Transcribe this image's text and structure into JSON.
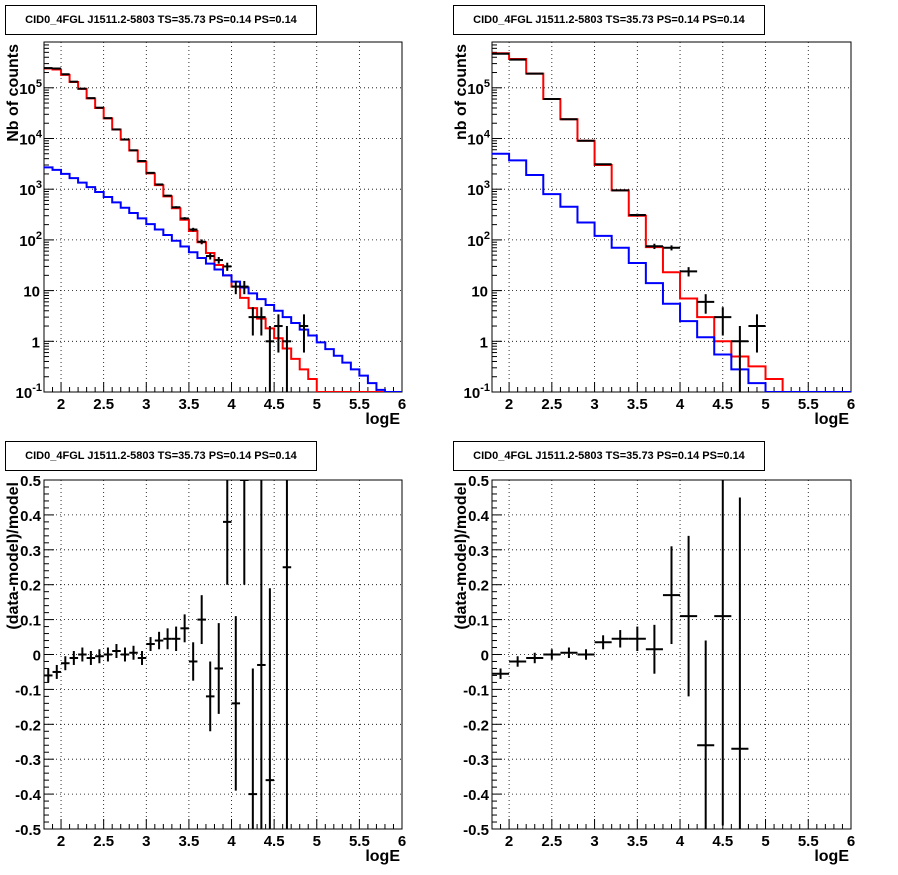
{
  "chart_data": [
    {
      "type": "line",
      "title": "CID0_4FGL J1511.2-5803 TS=35.73 PS=0.14 PS=0.14",
      "xlabel": "logE",
      "ylabel": "Nb of counts",
      "xlim": [
        1.8,
        6.0
      ],
      "ylim": [
        0.1,
        800000
      ],
      "yscale": "log",
      "grid": true,
      "x_ticks": [
        "2",
        "2.5",
        "3",
        "3.5",
        "4",
        "4.5",
        "5",
        "5.5",
        "6"
      ],
      "y_ticks": [
        "10^-1",
        "1",
        "10",
        "10^2",
        "10^3",
        "10^4",
        "10^5"
      ],
      "bin_edges": [
        1.8,
        1.9,
        2.0,
        2.1,
        2.2,
        2.3,
        2.4,
        2.5,
        2.6,
        2.7,
        2.8,
        2.9,
        3.0,
        3.1,
        3.2,
        3.3,
        3.4,
        3.5,
        3.6,
        3.7,
        3.8,
        3.9,
        4.0,
        4.1,
        4.2,
        4.3,
        4.4,
        4.5,
        4.6,
        4.7,
        4.8,
        4.9,
        5.0,
        5.1,
        5.2,
        5.3,
        5.4,
        5.5,
        5.6,
        5.7,
        5.8,
        5.9,
        6.0
      ],
      "series": [
        {
          "color": "#ff0000",
          "values": [
            240000,
            230000,
            180000,
            130000,
            95000,
            62000,
            40000,
            25000,
            15000,
            9500,
            5800,
            3500,
            2050,
            1200,
            720,
            420,
            250,
            150,
            90,
            55,
            32,
            20,
            12,
            7.2,
            4.5,
            2.8,
            1.8,
            1.15,
            0.72,
            0.45,
            0.28,
            0.18,
            0.1,
            0.1,
            0.1,
            0.1,
            0.1,
            0.1,
            0.1,
            0.1,
            0.1,
            0.1
          ]
        },
        {
          "color": "#0000ff",
          "values": [
            2700,
            2400,
            2000,
            1650,
            1350,
            1100,
            880,
            700,
            550,
            430,
            340,
            265,
            205,
            160,
            125,
            96,
            74,
            57,
            44,
            34,
            26,
            20,
            15,
            11.5,
            8.8,
            6.8,
            5.2,
            4,
            3,
            2.3,
            1.7,
            1.3,
            0.95,
            0.7,
            0.52,
            0.38,
            0.28,
            0.21,
            0.15,
            0.11,
            0.1,
            0.1
          ]
        }
      ],
      "data_points": [
        {
          "x": 1.85,
          "y": 245000,
          "ey": 500
        },
        {
          "x": 1.95,
          "y": 240000,
          "ey": 490
        },
        {
          "x": 2.05,
          "y": 185000,
          "ey": 430
        },
        {
          "x": 2.15,
          "y": 132000,
          "ey": 360
        },
        {
          "x": 2.25,
          "y": 96000,
          "ey": 310
        },
        {
          "x": 2.35,
          "y": 62500,
          "ey": 250
        },
        {
          "x": 2.45,
          "y": 40500,
          "ey": 200
        },
        {
          "x": 2.55,
          "y": 25200,
          "ey": 160
        },
        {
          "x": 2.65,
          "y": 15100,
          "ey": 120
        },
        {
          "x": 2.75,
          "y": 9550,
          "ey": 98
        },
        {
          "x": 2.85,
          "y": 5850,
          "ey": 76
        },
        {
          "x": 2.95,
          "y": 3600,
          "ey": 60
        },
        {
          "x": 3.05,
          "y": 2100,
          "ey": 46
        },
        {
          "x": 3.15,
          "y": 1240,
          "ey": 35
        },
        {
          "x": 3.25,
          "y": 745,
          "ey": 27
        },
        {
          "x": 3.35,
          "y": 440,
          "ey": 21
        },
        {
          "x": 3.45,
          "y": 265,
          "ey": 16
        },
        {
          "x": 3.55,
          "y": 160,
          "ey": 13
        },
        {
          "x": 3.65,
          "y": 92,
          "ey": 10
        },
        {
          "x": 3.75,
          "y": 48,
          "ey": 7
        },
        {
          "x": 3.85,
          "y": 40,
          "ey": 6
        },
        {
          "x": 3.95,
          "y": 30,
          "ey": 5.5
        },
        {
          "x": 4.05,
          "y": 12,
          "ey": 3.5
        },
        {
          "x": 4.15,
          "y": 12,
          "ey": 3.5
        },
        {
          "x": 4.25,
          "y": 3,
          "ey": 1.7
        },
        {
          "x": 4.35,
          "y": 3,
          "ey": 1.7
        },
        {
          "x": 4.45,
          "y": 1,
          "ey": 1
        },
        {
          "x": 4.55,
          "y": 2,
          "ey": 1.4
        },
        {
          "x": 4.65,
          "y": 1,
          "ey": 1
        },
        {
          "x": 4.85,
          "y": 2,
          "ey": 1.4
        }
      ]
    },
    {
      "type": "line",
      "title": "CID0_4FGL J1511.2-5803 TS=35.73 PS=0.14 PS=0.14",
      "xlabel": "logE",
      "ylabel": "nb of counts",
      "xlim": [
        1.8,
        6.0
      ],
      "ylim": [
        0.1,
        800000
      ],
      "yscale": "log",
      "grid": true,
      "x_ticks": [
        "2",
        "2.5",
        "3",
        "3.5",
        "4",
        "4.5",
        "5",
        "5.5",
        "6"
      ],
      "y_ticks": [
        "10^-1",
        "1",
        "10",
        "10^2",
        "10^3",
        "10^4",
        "10^5"
      ],
      "bin_edges": [
        1.8,
        2.0,
        2.2,
        2.4,
        2.6,
        2.8,
        3.0,
        3.2,
        3.4,
        3.6,
        3.8,
        4.0,
        4.2,
        4.4,
        4.6,
        4.8,
        5.0,
        5.2,
        5.4,
        5.6,
        5.8,
        6.0
      ],
      "series": [
        {
          "color": "#ff0000",
          "values": [
            480000,
            370000,
            190000,
            60000,
            24000,
            9000,
            3000,
            950,
            300,
            72,
            23,
            7,
            3,
            1,
            0.5,
            0.32,
            0.18,
            0.1,
            0.1,
            0.1,
            0.1
          ]
        },
        {
          "color": "#0000ff",
          "values": [
            5000,
            3700,
            1900,
            800,
            450,
            220,
            120,
            70,
            35,
            14,
            5.5,
            2.5,
            1.2,
            0.55,
            0.28,
            0.15,
            0.1,
            0.1,
            0.1,
            0.1,
            0.1
          ]
        }
      ],
      "data_points": [
        {
          "x": 1.9,
          "y": 470000,
          "ey": 700
        },
        {
          "x": 2.1,
          "y": 360000,
          "ey": 600
        },
        {
          "x": 2.3,
          "y": 190000,
          "ey": 430
        },
        {
          "x": 2.5,
          "y": 60000,
          "ey": 245
        },
        {
          "x": 2.7,
          "y": 24000,
          "ey": 155
        },
        {
          "x": 2.9,
          "y": 9000,
          "ey": 95
        },
        {
          "x": 3.1,
          "y": 3100,
          "ey": 56
        },
        {
          "x": 3.3,
          "y": 950,
          "ey": 31
        },
        {
          "x": 3.5,
          "y": 310,
          "ey": 18
        },
        {
          "x": 3.7,
          "y": 75,
          "ey": 9
        },
        {
          "x": 3.9,
          "y": 70,
          "ey": 8
        },
        {
          "x": 4.1,
          "y": 24,
          "ey": 5
        },
        {
          "x": 4.3,
          "y": 6,
          "ey": 2.5
        },
        {
          "x": 4.5,
          "y": 3,
          "ey": 1.7
        },
        {
          "x": 4.7,
          "y": 1,
          "ey": 1
        },
        {
          "x": 4.9,
          "y": 2,
          "ey": 1.4
        }
      ]
    },
    {
      "type": "scatter",
      "title": "CID0_4FGL J1511.2-5803 TS=35.73 PS=0.14 PS=0.14",
      "xlabel": "logE",
      "ylabel": "(data-model)/model",
      "xlim": [
        1.8,
        6.0
      ],
      "ylim": [
        -0.5,
        0.5
      ],
      "grid": true,
      "x_ticks": [
        "2",
        "2.5",
        "3",
        "3.5",
        "4",
        "4.5",
        "5",
        "5.5",
        "6"
      ],
      "y_ticks": [
        "-0.5",
        "-0.4",
        "-0.3",
        "-0.2",
        "-0.1",
        "0",
        "0.1",
        "0.2",
        "0.3",
        "0.4",
        "0.5"
      ],
      "points": [
        {
          "x": 1.85,
          "y": -0.06,
          "ey": 0.02
        },
        {
          "x": 1.95,
          "y": -0.05,
          "ey": 0.02
        },
        {
          "x": 2.05,
          "y": -0.025,
          "ey": 0.02
        },
        {
          "x": 2.15,
          "y": -0.01,
          "ey": 0.02
        },
        {
          "x": 2.25,
          "y": 0,
          "ey": 0.02
        },
        {
          "x": 2.35,
          "y": -0.01,
          "ey": 0.02
        },
        {
          "x": 2.45,
          "y": -0.005,
          "ey": 0.02
        },
        {
          "x": 2.55,
          "y": 0,
          "ey": 0.02
        },
        {
          "x": 2.65,
          "y": 0.01,
          "ey": 0.02
        },
        {
          "x": 2.75,
          "y": 0,
          "ey": 0.02
        },
        {
          "x": 2.85,
          "y": 0.005,
          "ey": 0.02
        },
        {
          "x": 2.95,
          "y": -0.01,
          "ey": 0.02
        },
        {
          "x": 3.05,
          "y": 0.03,
          "ey": 0.02
        },
        {
          "x": 3.15,
          "y": 0.04,
          "ey": 0.025
        },
        {
          "x": 3.25,
          "y": 0.045,
          "ey": 0.03
        },
        {
          "x": 3.35,
          "y": 0.045,
          "ey": 0.035
        },
        {
          "x": 3.45,
          "y": 0.075,
          "ey": 0.04
        },
        {
          "x": 3.55,
          "y": -0.02,
          "ey": 0.055
        },
        {
          "x": 3.65,
          "y": 0.1,
          "ey": 0.07
        },
        {
          "x": 3.75,
          "y": -0.12,
          "ey": 0.1
        },
        {
          "x": 3.85,
          "y": -0.04,
          "ey": 0.13
        },
        {
          "x": 3.95,
          "y": 0.38,
          "ey": 0.18
        },
        {
          "x": 4.05,
          "y": -0.14,
          "ey": 0.25
        },
        {
          "x": 4.15,
          "y": 0.5,
          "ey": 0.3
        },
        {
          "x": 4.25,
          "y": -0.4,
          "ey": 0.36
        },
        {
          "x": 4.35,
          "y": -0.03,
          "ey": 0.55
        },
        {
          "x": 4.45,
          "y": -0.36,
          "ey": 0.55
        },
        {
          "x": 4.65,
          "y": 0.25,
          "ey": 0.8
        }
      ]
    },
    {
      "type": "scatter",
      "title": "CID0_4FGL J1511.2-5803 TS=35.73 PS=0.14 PS=0.14",
      "xlabel": "logE",
      "ylabel": "(data-model)/model",
      "xlim": [
        1.8,
        6.0
      ],
      "ylim": [
        -0.5,
        0.5
      ],
      "grid": true,
      "x_ticks": [
        "2",
        "2.5",
        "3",
        "3.5",
        "4",
        "4.5",
        "5",
        "5.5",
        "6"
      ],
      "y_ticks": [
        "-0.5",
        "-0.4",
        "-0.3",
        "-0.2",
        "-0.1",
        "0",
        "0.1",
        "0.2",
        "0.3",
        "0.4",
        "0.5"
      ],
      "points": [
        {
          "x": 1.9,
          "y": -0.055,
          "ey": 0.015
        },
        {
          "x": 2.1,
          "y": -0.02,
          "ey": 0.015
        },
        {
          "x": 2.3,
          "y": -0.01,
          "ey": 0.015
        },
        {
          "x": 2.5,
          "y": 0,
          "ey": 0.015
        },
        {
          "x": 2.7,
          "y": 0.005,
          "ey": 0.015
        },
        {
          "x": 2.9,
          "y": 0,
          "ey": 0.015
        },
        {
          "x": 3.1,
          "y": 0.035,
          "ey": 0.02
        },
        {
          "x": 3.3,
          "y": 0.045,
          "ey": 0.025
        },
        {
          "x": 3.5,
          "y": 0.045,
          "ey": 0.035
        },
        {
          "x": 3.7,
          "y": 0.015,
          "ey": 0.07
        },
        {
          "x": 3.9,
          "y": 0.17,
          "ey": 0.14
        },
        {
          "x": 4.1,
          "y": 0.11,
          "ey": 0.23
        },
        {
          "x": 4.3,
          "y": -0.26,
          "ey": 0.3
        },
        {
          "x": 4.5,
          "y": 0.11,
          "ey": 0.6
        },
        {
          "x": 4.7,
          "y": -0.27,
          "ey": 0.72
        }
      ]
    }
  ]
}
